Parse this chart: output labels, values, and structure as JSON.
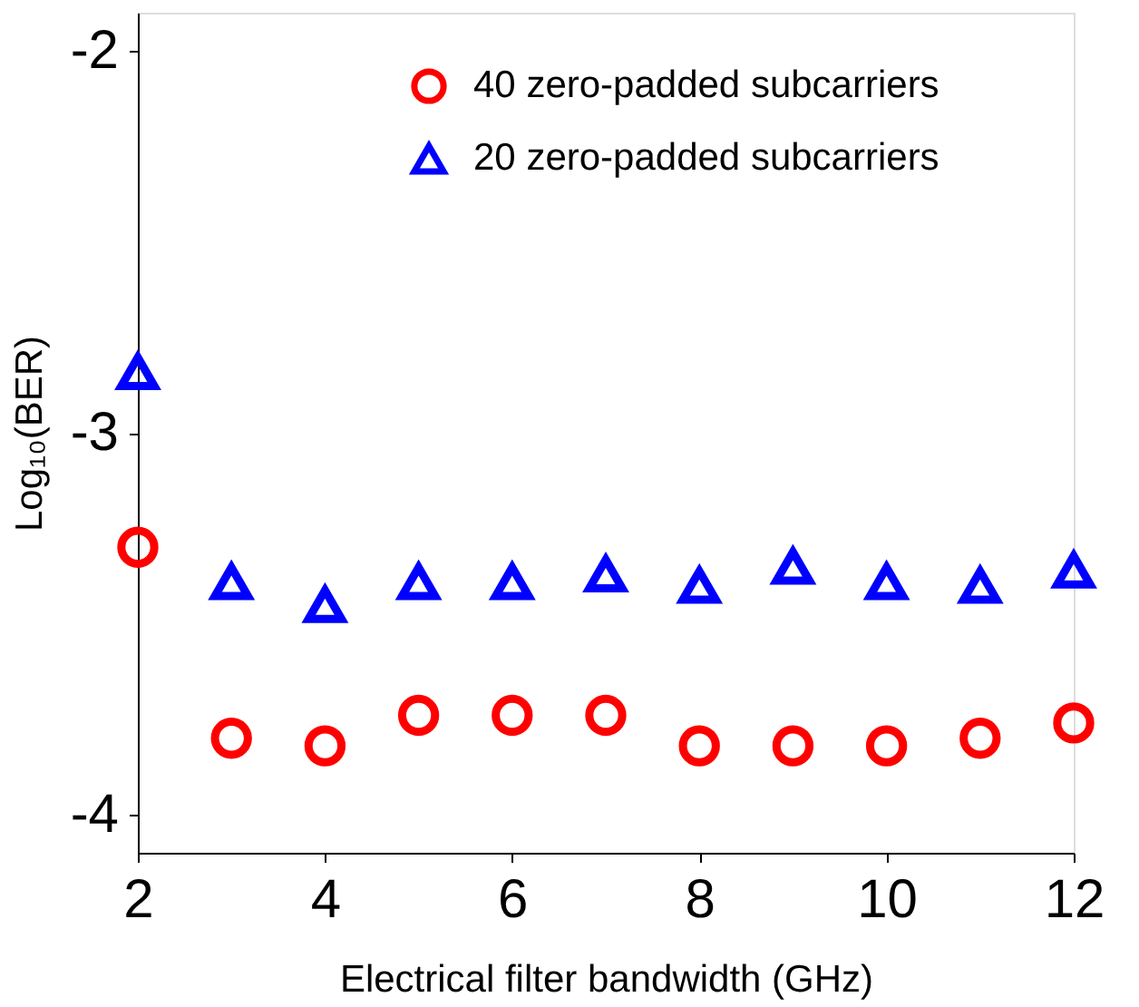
{
  "chart_data": {
    "type": "scatter",
    "xlabel": "Electrical filter bandwidth (GHz)",
    "ylabel": "Log₁₀(BER)",
    "x": [
      2,
      3,
      4,
      5,
      6,
      7,
      8,
      9,
      10,
      11,
      12
    ],
    "series": [
      {
        "name": "40 zero-padded subcarriers",
        "color": "#ff0000",
        "marker": "circle",
        "values": [
          -3.3,
          -3.8,
          -3.82,
          -3.74,
          -3.74,
          -3.74,
          -3.82,
          -3.82,
          -3.82,
          -3.8,
          -3.76
        ]
      },
      {
        "name": "20 zero-padded subcarriers",
        "color": "#0000ff",
        "marker": "triangle",
        "values": [
          -2.84,
          -3.39,
          -3.45,
          -3.39,
          -3.39,
          -3.37,
          -3.4,
          -3.35,
          -3.39,
          -3.4,
          -3.36
        ]
      }
    ],
    "xlim": [
      2,
      12
    ],
    "xticks": [
      2,
      4,
      6,
      8,
      10,
      12
    ],
    "ylim": [
      -4.1,
      -1.9
    ],
    "yticks": [
      -2,
      -3,
      -4
    ],
    "grid": false,
    "legend": "top right"
  }
}
